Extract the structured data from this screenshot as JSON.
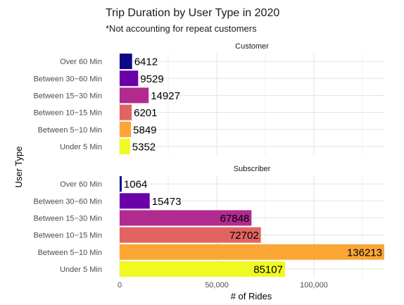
{
  "chart_data": {
    "type": "bar",
    "orientation": "horizontal",
    "title": "Trip Duration by User Type in 2020",
    "subtitle": "*Not accounting for repeat customers",
    "xlabel": "# of Rides",
    "ylabel": "User Type",
    "categories": [
      "Over 60 Min",
      "Between 30−60 Min",
      "Between 15−30 Min",
      "Between 10−15 Min",
      "Between 5−10 Min",
      "Under 5 Min"
    ],
    "colors": [
      "#0d0887",
      "#6a00a8",
      "#b12a90",
      "#e16462",
      "#fca636",
      "#f0f921"
    ],
    "xlim": [
      0,
      136213
    ],
    "x_ticks": [
      0,
      50000,
      100000
    ],
    "x_tick_labels": [
      "0",
      "50,000",
      "100,000"
    ],
    "grid": true,
    "panels": [
      {
        "name": "Customer",
        "values": [
          6412,
          9529,
          14927,
          6201,
          5849,
          5352
        ]
      },
      {
        "name": "Subscriber",
        "values": [
          1064,
          15473,
          67848,
          72702,
          136213,
          85107
        ]
      }
    ]
  }
}
